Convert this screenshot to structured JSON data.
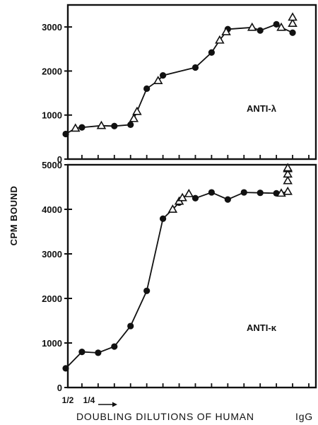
{
  "figure": {
    "ylabel": "CPM BOUND",
    "xlabel_main": "DOUBLING DILUTIONS OF HUMAN",
    "xlabel_suffix": "IgG",
    "x_tick_labels": [
      "1/2",
      "1/4"
    ]
  },
  "chart_data": [
    {
      "type": "line",
      "title": "ANTI-λ",
      "ylabel": "CPM BOUND",
      "xlabel": "DOUBLING DILUTIONS OF HUMAN IgG",
      "ylim": [
        0,
        3500
      ],
      "yticks": [
        0,
        1000,
        2000,
        3000
      ],
      "xlim": [
        0,
        15
      ],
      "series": [
        {
          "marker": "filled-circle",
          "x": [
            0,
            1,
            3,
            4,
            5,
            6,
            8,
            9,
            10,
            12,
            13,
            14
          ],
          "y": [
            570,
            720,
            750,
            780,
            1600,
            1900,
            2080,
            2420,
            2950,
            2920,
            3060,
            2870
          ]
        },
        {
          "marker": "open-triangle",
          "x": [
            0.6,
            2.2,
            4.2,
            4.4,
            5.7,
            9.5,
            9.9,
            11.5,
            13.3,
            14.0,
            14.0
          ],
          "y": [
            700,
            760,
            920,
            1080,
            1780,
            2700,
            2890,
            2990,
            2990,
            3080,
            3220
          ]
        }
      ]
    },
    {
      "type": "line",
      "title": "ANTI-κ",
      "ylabel": "CPM BOUND",
      "xlabel": "DOUBLING DILUTIONS OF HUMAN IgG",
      "ylim": [
        0,
        5000
      ],
      "yticks": [
        0,
        1000,
        2000,
        3000,
        4000,
        5000
      ],
      "xlim": [
        0,
        15
      ],
      "series": [
        {
          "marker": "filled-circle",
          "x": [
            0,
            1,
            2,
            3,
            4,
            5,
            6,
            7,
            8,
            9,
            10,
            11,
            12,
            13
          ],
          "y": [
            430,
            800,
            780,
            920,
            1380,
            2170,
            3790,
            4150,
            4250,
            4380,
            4220,
            4380,
            4370,
            4360
          ]
        },
        {
          "marker": "open-triangle",
          "x": [
            6.6,
            7.0,
            7.2,
            7.6,
            13.3,
            13.7,
            13.7,
            13.7,
            13.7,
            13.7
          ],
          "y": [
            4000,
            4180,
            4260,
            4350,
            4360,
            4400,
            4640,
            4790,
            4910,
            4930
          ]
        }
      ]
    }
  ]
}
